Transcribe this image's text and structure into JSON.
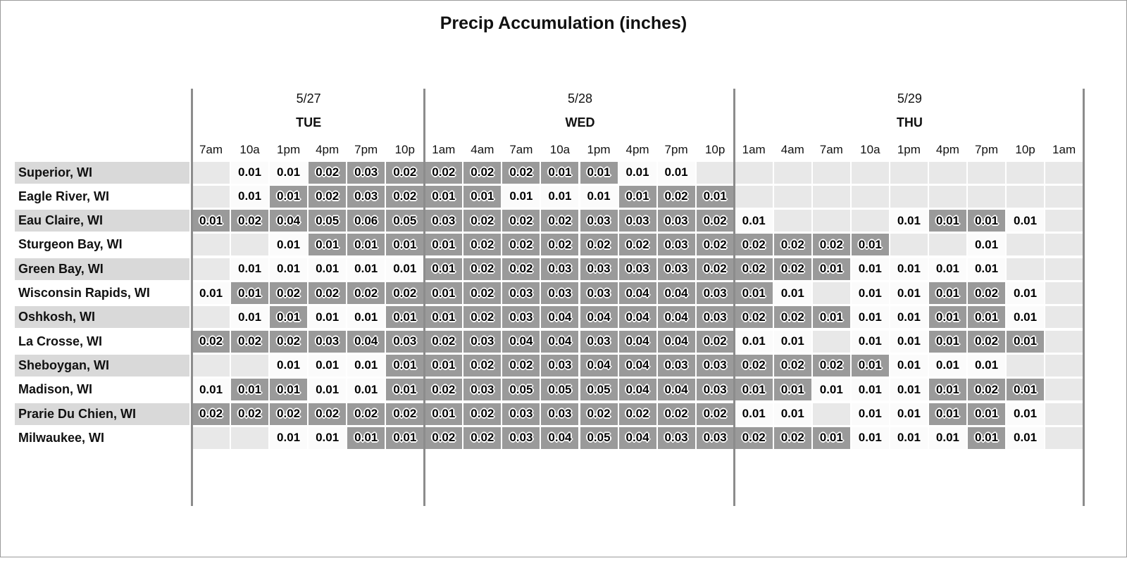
{
  "chart_data": {
    "type": "heatmap",
    "title": "Precip Accumulation (inches)",
    "day_groups": [
      {
        "date": "5/27",
        "day": "TUE",
        "span": 6
      },
      {
        "date": "5/28",
        "day": "WED",
        "span": 8
      },
      {
        "date": "5/29",
        "day": "THU",
        "span": 9
      }
    ],
    "hours": [
      "7am",
      "10a",
      "1pm",
      "4pm",
      "7pm",
      "10p",
      "1am",
      "4am",
      "7am",
      "10a",
      "1pm",
      "4pm",
      "7pm",
      "10p",
      "1am",
      "4am",
      "7am",
      "10a",
      "1pm",
      "4pm",
      "7pm",
      "10p",
      "1am"
    ],
    "shade_legend": {
      "e": "no data",
      "w": "value, plain background",
      "g": "value, shaded background"
    },
    "rows": [
      {
        "location": "Superior, WI",
        "values": [
          "",
          "0.01",
          "0.01",
          "0.02",
          "0.03",
          "0.02",
          "0.02",
          "0.02",
          "0.02",
          "0.01",
          "0.01",
          "0.01",
          "0.01",
          "",
          "",
          "",
          "",
          "",
          "",
          "",
          "",
          "",
          ""
        ],
        "shades": [
          "e",
          "w",
          "w",
          "g",
          "g",
          "g",
          "g",
          "g",
          "g",
          "g",
          "g",
          "w",
          "w",
          "e",
          "e",
          "e",
          "e",
          "e",
          "e",
          "e",
          "e",
          "e",
          "e"
        ]
      },
      {
        "location": "Eagle River, WI",
        "values": [
          "",
          "0.01",
          "0.01",
          "0.02",
          "0.03",
          "0.02",
          "0.01",
          "0.01",
          "0.01",
          "0.01",
          "0.01",
          "0.01",
          "0.02",
          "0.01",
          "",
          "",
          "",
          "",
          "",
          "",
          "",
          "",
          ""
        ],
        "shades": [
          "e",
          "w",
          "g",
          "g",
          "g",
          "g",
          "g",
          "g",
          "w",
          "w",
          "w",
          "g",
          "g",
          "g",
          "e",
          "e",
          "e",
          "e",
          "e",
          "e",
          "e",
          "e",
          "e"
        ]
      },
      {
        "location": "Eau Claire, WI",
        "values": [
          "0.01",
          "0.02",
          "0.04",
          "0.05",
          "0.06",
          "0.05",
          "0.03",
          "0.02",
          "0.02",
          "0.02",
          "0.03",
          "0.03",
          "0.03",
          "0.02",
          "0.01",
          "",
          "",
          "",
          "0.01",
          "0.01",
          "0.01",
          "0.01",
          ""
        ],
        "shades": [
          "g",
          "g",
          "g",
          "g",
          "g",
          "g",
          "g",
          "g",
          "g",
          "g",
          "g",
          "g",
          "g",
          "g",
          "w",
          "e",
          "e",
          "e",
          "w",
          "g",
          "g",
          "w",
          "e"
        ]
      },
      {
        "location": "Sturgeon Bay, WI",
        "values": [
          "",
          "",
          "0.01",
          "0.01",
          "0.01",
          "0.01",
          "0.01",
          "0.02",
          "0.02",
          "0.02",
          "0.02",
          "0.02",
          "0.03",
          "0.02",
          "0.02",
          "0.02",
          "0.02",
          "0.01",
          "",
          "",
          "0.01",
          "",
          ""
        ],
        "shades": [
          "e",
          "e",
          "w",
          "g",
          "g",
          "g",
          "g",
          "g",
          "g",
          "g",
          "g",
          "g",
          "g",
          "g",
          "g",
          "g",
          "g",
          "g",
          "e",
          "e",
          "w",
          "e",
          "e"
        ]
      },
      {
        "location": "Green Bay, WI",
        "values": [
          "",
          "0.01",
          "0.01",
          "0.01",
          "0.01",
          "0.01",
          "0.01",
          "0.02",
          "0.02",
          "0.03",
          "0.03",
          "0.03",
          "0.03",
          "0.02",
          "0.02",
          "0.02",
          "0.01",
          "0.01",
          "0.01",
          "0.01",
          "0.01",
          "",
          ""
        ],
        "shades": [
          "e",
          "w",
          "w",
          "w",
          "w",
          "w",
          "g",
          "g",
          "g",
          "g",
          "g",
          "g",
          "g",
          "g",
          "g",
          "g",
          "g",
          "w",
          "w",
          "w",
          "w",
          "e",
          "e"
        ]
      },
      {
        "location": "Wisconsin Rapids, WI",
        "values": [
          "0.01",
          "0.01",
          "0.02",
          "0.02",
          "0.02",
          "0.02",
          "0.01",
          "0.02",
          "0.03",
          "0.03",
          "0.03",
          "0.04",
          "0.04",
          "0.03",
          "0.01",
          "0.01",
          "",
          "0.01",
          "0.01",
          "0.01",
          "0.02",
          "0.01",
          ""
        ],
        "shades": [
          "w",
          "g",
          "g",
          "g",
          "g",
          "g",
          "g",
          "g",
          "g",
          "g",
          "g",
          "g",
          "g",
          "g",
          "g",
          "w",
          "e",
          "w",
          "w",
          "g",
          "g",
          "w",
          "e"
        ]
      },
      {
        "location": "Oshkosh, WI",
        "values": [
          "",
          "0.01",
          "0.01",
          "0.01",
          "0.01",
          "0.01",
          "0.01",
          "0.02",
          "0.03",
          "0.04",
          "0.04",
          "0.04",
          "0.04",
          "0.03",
          "0.02",
          "0.02",
          "0.01",
          "0.01",
          "0.01",
          "0.01",
          "0.01",
          "0.01",
          ""
        ],
        "shades": [
          "e",
          "w",
          "g",
          "w",
          "w",
          "g",
          "g",
          "g",
          "g",
          "g",
          "g",
          "g",
          "g",
          "g",
          "g",
          "g",
          "g",
          "w",
          "w",
          "g",
          "g",
          "w",
          "e"
        ]
      },
      {
        "location": "La Crosse, WI",
        "values": [
          "0.02",
          "0.02",
          "0.02",
          "0.03",
          "0.04",
          "0.03",
          "0.02",
          "0.03",
          "0.04",
          "0.04",
          "0.03",
          "0.04",
          "0.04",
          "0.02",
          "0.01",
          "0.01",
          "",
          "0.01",
          "0.01",
          "0.01",
          "0.02",
          "0.01",
          ""
        ],
        "shades": [
          "g",
          "g",
          "g",
          "g",
          "g",
          "g",
          "g",
          "g",
          "g",
          "g",
          "g",
          "g",
          "g",
          "g",
          "w",
          "w",
          "e",
          "w",
          "w",
          "g",
          "g",
          "g",
          "e"
        ]
      },
      {
        "location": "Sheboygan, WI",
        "values": [
          "",
          "",
          "0.01",
          "0.01",
          "0.01",
          "0.01",
          "0.01",
          "0.02",
          "0.02",
          "0.03",
          "0.04",
          "0.04",
          "0.03",
          "0.03",
          "0.02",
          "0.02",
          "0.02",
          "0.01",
          "0.01",
          "0.01",
          "0.01",
          "",
          ""
        ],
        "shades": [
          "e",
          "e",
          "w",
          "w",
          "w",
          "g",
          "g",
          "g",
          "g",
          "g",
          "g",
          "g",
          "g",
          "g",
          "g",
          "g",
          "g",
          "g",
          "w",
          "w",
          "w",
          "e",
          "e"
        ]
      },
      {
        "location": "Madison, WI",
        "values": [
          "0.01",
          "0.01",
          "0.01",
          "0.01",
          "0.01",
          "0.01",
          "0.02",
          "0.03",
          "0.05",
          "0.05",
          "0.05",
          "0.04",
          "0.04",
          "0.03",
          "0.01",
          "0.01",
          "0.01",
          "0.01",
          "0.01",
          "0.01",
          "0.02",
          "0.01",
          ""
        ],
        "shades": [
          "w",
          "g",
          "g",
          "w",
          "w",
          "g",
          "g",
          "g",
          "g",
          "g",
          "g",
          "g",
          "g",
          "g",
          "g",
          "g",
          "w",
          "w",
          "w",
          "g",
          "g",
          "g",
          "e"
        ]
      },
      {
        "location": "Prarie Du Chien, WI",
        "values": [
          "0.02",
          "0.02",
          "0.02",
          "0.02",
          "0.02",
          "0.02",
          "0.01",
          "0.02",
          "0.03",
          "0.03",
          "0.02",
          "0.02",
          "0.02",
          "0.02",
          "0.01",
          "0.01",
          "",
          "0.01",
          "0.01",
          "0.01",
          "0.01",
          "0.01",
          ""
        ],
        "shades": [
          "g",
          "g",
          "g",
          "g",
          "g",
          "g",
          "g",
          "g",
          "g",
          "g",
          "g",
          "g",
          "g",
          "g",
          "w",
          "w",
          "e",
          "w",
          "w",
          "g",
          "g",
          "w",
          "e"
        ]
      },
      {
        "location": "Milwaukee, WI",
        "values": [
          "",
          "",
          "0.01",
          "0.01",
          "0.01",
          "0.01",
          "0.02",
          "0.02",
          "0.03",
          "0.04",
          "0.05",
          "0.04",
          "0.03",
          "0.03",
          "0.02",
          "0.02",
          "0.01",
          "0.01",
          "0.01",
          "0.01",
          "0.01",
          "0.01",
          ""
        ],
        "shades": [
          "e",
          "e",
          "w",
          "w",
          "g",
          "g",
          "g",
          "g",
          "g",
          "g",
          "g",
          "g",
          "g",
          "g",
          "g",
          "g",
          "g",
          "w",
          "w",
          "w",
          "g",
          "w",
          "e"
        ]
      }
    ]
  },
  "colors": {
    "cell_empty": "#e8e8e8",
    "cell_plain": "#fbfbfb",
    "cell_shaded": "#9a9a9a",
    "label_stripe": "#d9d9d9",
    "divider": "#8c8c8c",
    "text": "#111111"
  }
}
